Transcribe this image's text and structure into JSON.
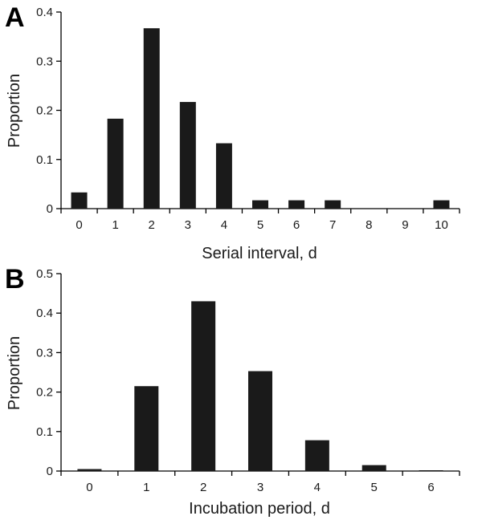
{
  "chart_data": [
    {
      "panel_label": "A",
      "type": "bar",
      "categories": [
        "0",
        "1",
        "2",
        "3",
        "4",
        "5",
        "6",
        "7",
        "8",
        "9",
        "10"
      ],
      "values": [
        0.033,
        0.183,
        0.367,
        0.217,
        0.133,
        0.017,
        0.017,
        0.017,
        0,
        0,
        0.017
      ],
      "title": "",
      "xlabel": "Serial interval, d",
      "ylabel": "Proportion",
      "ylim": [
        0,
        0.4
      ],
      "yticks": [
        "0",
        "0.1",
        "0.2",
        "0.3",
        "0.4"
      ],
      "grid": false,
      "legend": "none"
    },
    {
      "panel_label": "B",
      "type": "bar",
      "categories": [
        "0",
        "1",
        "2",
        "3",
        "4",
        "5",
        "6"
      ],
      "values": [
        0.005,
        0.215,
        0.43,
        0.253,
        0.078,
        0.015,
        0.002
      ],
      "title": "",
      "xlabel": "Incubation period, d",
      "ylabel": "Proportion",
      "ylim": [
        0,
        0.5
      ],
      "yticks": [
        "0",
        "0.1",
        "0.2",
        "0.3",
        "0.4",
        "0.5"
      ],
      "grid": false,
      "legend": "none"
    }
  ]
}
